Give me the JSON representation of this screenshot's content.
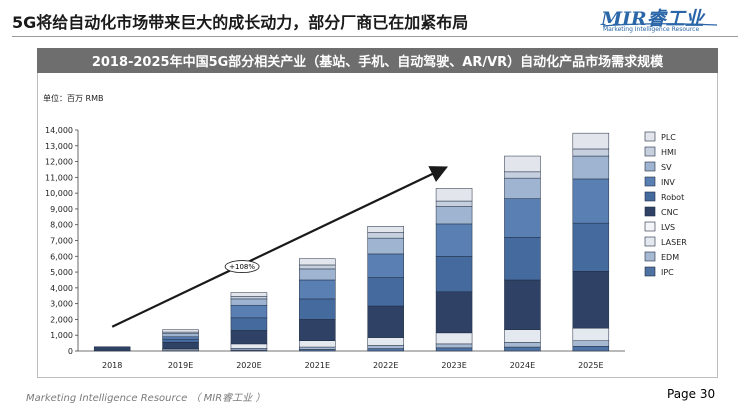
{
  "slide": {
    "title": "5G将给自动化市场带来巨大的成长动力，部分厂商已在加紧布局",
    "logo_text": "MIR睿工业",
    "logo_subtext": "Marketing Intelligence Resource",
    "footer_left": "Marketing Intelligence Resource （ MIR睿工业 ）",
    "page_label": "Page 30"
  },
  "colors": {
    "banner": "#6e6e6e",
    "logo": "#2a66a8",
    "arrow": "#1a1a1a"
  },
  "chart_data": {
    "type": "bar",
    "stacked": true,
    "title": "2018-2025年中国5G部分相关产业（基站、手机、自动驾驶、AR/VR）自动化产品市场需求规模",
    "unit_label": "单位：百万 RMB",
    "categories": [
      "2018",
      "2019E",
      "2020E",
      "2021E",
      "2022E",
      "2023E",
      "2024E",
      "2025E"
    ],
    "ylim": [
      0,
      14000
    ],
    "yticks": [
      0,
      1000,
      2000,
      3000,
      4000,
      5000,
      6000,
      7000,
      8000,
      9000,
      10000,
      11000,
      12000,
      13000,
      14000
    ],
    "grid": false,
    "legend_position": "right",
    "annotation": "+108%",
    "series": [
      {
        "name": "IPC",
        "color": "#4e72a2",
        "values": [
          0,
          20,
          60,
          100,
          150,
          200,
          250,
          300
        ]
      },
      {
        "name": "EDM",
        "color": "#a7b9d1",
        "values": [
          0,
          60,
          100,
          150,
          200,
          250,
          300,
          350
        ]
      },
      {
        "name": "LASER",
        "color": "#e4e8ef",
        "values": [
          0,
          70,
          290,
          400,
          500,
          700,
          800,
          800
        ]
      },
      {
        "name": "LVS",
        "color": "#f3f5f8",
        "values": [
          0,
          0,
          0,
          0,
          0,
          0,
          0,
          0
        ]
      },
      {
        "name": "CNC",
        "color": "#2f4266",
        "values": [
          270,
          400,
          850,
          1350,
          2000,
          2600,
          3150,
          3600
        ]
      },
      {
        "name": "Robot",
        "color": "#456a9e",
        "values": [
          0,
          200,
          800,
          1300,
          1800,
          2250,
          2700,
          3050
        ]
      },
      {
        "name": "INV",
        "color": "#5a80b3",
        "values": [
          0,
          150,
          800,
          1200,
          1500,
          2050,
          2450,
          2800
        ]
      },
      {
        "name": "SV",
        "color": "#9fb4d0",
        "values": [
          0,
          200,
          400,
          700,
          1000,
          1100,
          1300,
          1450
        ]
      },
      {
        "name": "HMI",
        "color": "#c5cfde",
        "values": [
          0,
          100,
          150,
          250,
          350,
          350,
          400,
          450
        ]
      },
      {
        "name": "PLC",
        "color": "#e2e6ec",
        "values": [
          0,
          150,
          250,
          400,
          400,
          800,
          1000,
          1000
        ]
      }
    ]
  }
}
